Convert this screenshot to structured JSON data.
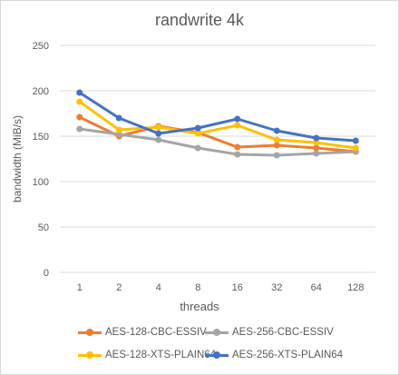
{
  "chart_data": {
    "type": "line",
    "title": "randwrite 4k",
    "xlabel": "threads",
    "ylabel": "bandwidth (MiB/s)",
    "categories": [
      "1",
      "2",
      "4",
      "8",
      "16",
      "32",
      "64",
      "128"
    ],
    "ylim": [
      0,
      250
    ],
    "yticks": [
      "0",
      "50",
      "100",
      "150",
      "200",
      "250"
    ],
    "grid": true,
    "legend": "bottom",
    "series": [
      {
        "name": "AES-128-CBC-ESSIV",
        "color": "#ed7d31",
        "values": [
          171,
          150,
          161,
          154,
          138,
          140,
          137,
          133
        ]
      },
      {
        "name": "AES-256-CBC-ESSIV",
        "color": "#a5a5a5",
        "values": [
          158,
          152,
          146,
          137,
          130,
          129,
          131,
          133
        ]
      },
      {
        "name": "AES-128-XTS-PLAIN64",
        "color": "#ffc000",
        "values": [
          188,
          157,
          160,
          153,
          162,
          146,
          143,
          137
        ]
      },
      {
        "name": "AES-256-XTS-PLAIN64",
        "color": "#4472c4",
        "values": [
          198,
          170,
          153,
          159,
          169,
          156,
          148,
          145
        ]
      }
    ]
  }
}
